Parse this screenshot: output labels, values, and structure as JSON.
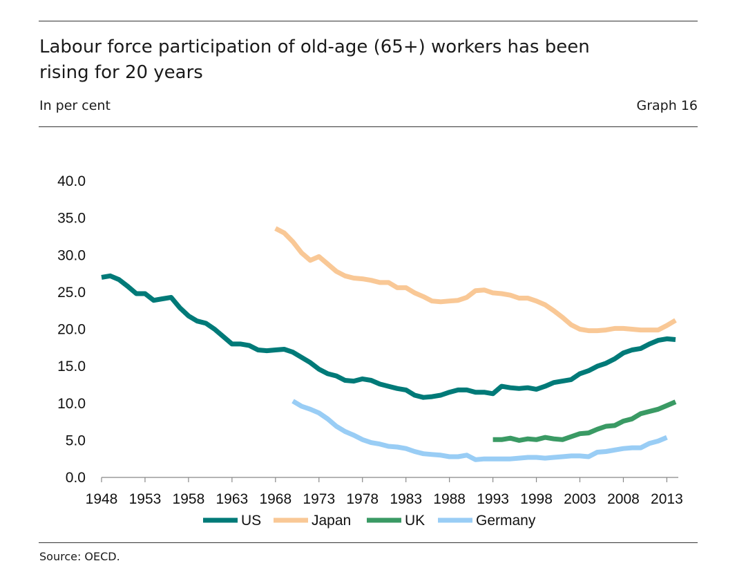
{
  "header": {
    "title": "Labour force participation of old-age (65+) workers has been rising for 20 years",
    "subtitle": "In per cent",
    "graph_label": "Graph 16"
  },
  "footer": {
    "source": "Source: OECD."
  },
  "chart_data": {
    "type": "line",
    "title": "Labour force participation of old-age (65+) workers has been rising for 20 years",
    "subtitle": "In per cent",
    "xlim": [
      1948,
      2014
    ],
    "ylim": [
      0,
      40
    ],
    "x_ticks": [
      "1948",
      "1953",
      "1958",
      "1963",
      "1968",
      "1973",
      "1978",
      "1983",
      "1988",
      "1993",
      "1998",
      "2003",
      "2008",
      "2013"
    ],
    "y_ticks": [
      "0.0",
      "5.0",
      "10.0",
      "15.0",
      "20.0",
      "25.0",
      "30.0",
      "35.0",
      "40.0"
    ],
    "grid": false,
    "legend_position": "bottom",
    "series": [
      {
        "name": "US",
        "color": "#007a78",
        "points": [
          [
            1948,
            27.0
          ],
          [
            1949,
            27.2
          ],
          [
            1950,
            26.7
          ],
          [
            1951,
            25.8
          ],
          [
            1952,
            24.8
          ],
          [
            1953,
            24.8
          ],
          [
            1954,
            23.9
          ],
          [
            1955,
            24.1
          ],
          [
            1956,
            24.3
          ],
          [
            1957,
            22.9
          ],
          [
            1958,
            21.8
          ],
          [
            1959,
            21.1
          ],
          [
            1960,
            20.8
          ],
          [
            1961,
            20.0
          ],
          [
            1962,
            19.0
          ],
          [
            1963,
            18.0
          ],
          [
            1964,
            18.0
          ],
          [
            1965,
            17.8
          ],
          [
            1966,
            17.2
          ],
          [
            1967,
            17.1
          ],
          [
            1968,
            17.2
          ],
          [
            1969,
            17.3
          ],
          [
            1970,
            16.9
          ],
          [
            1971,
            16.2
          ],
          [
            1972,
            15.5
          ],
          [
            1973,
            14.6
          ],
          [
            1974,
            14.0
          ],
          [
            1975,
            13.7
          ],
          [
            1976,
            13.1
          ],
          [
            1977,
            13.0
          ],
          [
            1978,
            13.3
          ],
          [
            1979,
            13.1
          ],
          [
            1980,
            12.6
          ],
          [
            1981,
            12.3
          ],
          [
            1982,
            12.0
          ],
          [
            1983,
            11.8
          ],
          [
            1984,
            11.1
          ],
          [
            1985,
            10.8
          ],
          [
            1986,
            10.9
          ],
          [
            1987,
            11.1
          ],
          [
            1988,
            11.5
          ],
          [
            1989,
            11.8
          ],
          [
            1990,
            11.8
          ],
          [
            1991,
            11.5
          ],
          [
            1992,
            11.5
          ],
          [
            1993,
            11.3
          ],
          [
            1994,
            12.3
          ],
          [
            1995,
            12.1
          ],
          [
            1996,
            12.0
          ],
          [
            1997,
            12.1
          ],
          [
            1998,
            11.9
          ],
          [
            1999,
            12.3
          ],
          [
            2000,
            12.8
          ],
          [
            2001,
            13.0
          ],
          [
            2002,
            13.2
          ],
          [
            2003,
            14.0
          ],
          [
            2004,
            14.4
          ],
          [
            2005,
            15.0
          ],
          [
            2006,
            15.4
          ],
          [
            2007,
            16.0
          ],
          [
            2008,
            16.8
          ],
          [
            2009,
            17.2
          ],
          [
            2010,
            17.4
          ],
          [
            2011,
            18.0
          ],
          [
            2012,
            18.5
          ],
          [
            2013,
            18.7
          ],
          [
            2014,
            18.6
          ]
        ]
      },
      {
        "name": "Japan",
        "color": "#f9c896",
        "points": [
          [
            1968,
            33.6
          ],
          [
            1969,
            33.0
          ],
          [
            1970,
            31.8
          ],
          [
            1971,
            30.3
          ],
          [
            1972,
            29.3
          ],
          [
            1973,
            29.8
          ],
          [
            1974,
            28.8
          ],
          [
            1975,
            27.8
          ],
          [
            1976,
            27.2
          ],
          [
            1977,
            26.9
          ],
          [
            1978,
            26.8
          ],
          [
            1979,
            26.6
          ],
          [
            1980,
            26.3
          ],
          [
            1981,
            26.3
          ],
          [
            1982,
            25.6
          ],
          [
            1983,
            25.6
          ],
          [
            1984,
            24.9
          ],
          [
            1985,
            24.4
          ],
          [
            1986,
            23.8
          ],
          [
            1987,
            23.7
          ],
          [
            1988,
            23.8
          ],
          [
            1989,
            23.9
          ],
          [
            1990,
            24.3
          ],
          [
            1991,
            25.2
          ],
          [
            1992,
            25.3
          ],
          [
            1993,
            24.9
          ],
          [
            1994,
            24.8
          ],
          [
            1995,
            24.6
          ],
          [
            1996,
            24.2
          ],
          [
            1997,
            24.2
          ],
          [
            1998,
            23.8
          ],
          [
            1999,
            23.3
          ],
          [
            2000,
            22.5
          ],
          [
            2001,
            21.6
          ],
          [
            2002,
            20.6
          ],
          [
            2003,
            20.0
          ],
          [
            2004,
            19.8
          ],
          [
            2005,
            19.8
          ],
          [
            2006,
            19.9
          ],
          [
            2007,
            20.1
          ],
          [
            2008,
            20.1
          ],
          [
            2009,
            20.0
          ],
          [
            2010,
            19.9
          ],
          [
            2011,
            19.9
          ],
          [
            2012,
            19.9
          ],
          [
            2013,
            20.5
          ],
          [
            2014,
            21.2
          ]
        ]
      },
      {
        "name": "UK",
        "color": "#3a9a64",
        "points": [
          [
            1993,
            5.1
          ],
          [
            1994,
            5.1
          ],
          [
            1995,
            5.3
          ],
          [
            1996,
            5.0
          ],
          [
            1997,
            5.2
          ],
          [
            1998,
            5.1
          ],
          [
            1999,
            5.4
          ],
          [
            2000,
            5.2
          ],
          [
            2001,
            5.1
          ],
          [
            2002,
            5.5
          ],
          [
            2003,
            5.9
          ],
          [
            2004,
            6.0
          ],
          [
            2005,
            6.5
          ],
          [
            2006,
            6.9
          ],
          [
            2007,
            7.0
          ],
          [
            2008,
            7.6
          ],
          [
            2009,
            7.9
          ],
          [
            2010,
            8.6
          ],
          [
            2011,
            8.9
          ],
          [
            2012,
            9.2
          ],
          [
            2013,
            9.7
          ],
          [
            2014,
            10.2
          ]
        ]
      },
      {
        "name": "Germany",
        "color": "#99cdf5",
        "points": [
          [
            1970,
            10.3
          ],
          [
            1971,
            9.6
          ],
          [
            1972,
            9.2
          ],
          [
            1973,
            8.7
          ],
          [
            1974,
            7.9
          ],
          [
            1975,
            6.9
          ],
          [
            1976,
            6.2
          ],
          [
            1977,
            5.7
          ],
          [
            1978,
            5.1
          ],
          [
            1979,
            4.7
          ],
          [
            1980,
            4.5
          ],
          [
            1981,
            4.2
          ],
          [
            1982,
            4.1
          ],
          [
            1983,
            3.9
          ],
          [
            1984,
            3.5
          ],
          [
            1985,
            3.2
          ],
          [
            1986,
            3.1
          ],
          [
            1987,
            3.0
          ],
          [
            1988,
            2.8
          ],
          [
            1989,
            2.8
          ],
          [
            1990,
            3.0
          ],
          [
            1991,
            2.4
          ],
          [
            1992,
            2.5
          ],
          [
            1993,
            2.5
          ],
          [
            1994,
            2.5
          ],
          [
            1995,
            2.5
          ],
          [
            1996,
            2.6
          ],
          [
            1997,
            2.7
          ],
          [
            1998,
            2.7
          ],
          [
            1999,
            2.6
          ],
          [
            2000,
            2.7
          ],
          [
            2001,
            2.8
          ],
          [
            2002,
            2.9
          ],
          [
            2003,
            2.9
          ],
          [
            2004,
            2.8
          ],
          [
            2005,
            3.4
          ],
          [
            2006,
            3.5
          ],
          [
            2007,
            3.7
          ],
          [
            2008,
            3.9
          ],
          [
            2009,
            4.0
          ],
          [
            2010,
            4.0
          ],
          [
            2011,
            4.6
          ],
          [
            2012,
            4.9
          ],
          [
            2013,
            5.4
          ]
        ]
      }
    ]
  }
}
